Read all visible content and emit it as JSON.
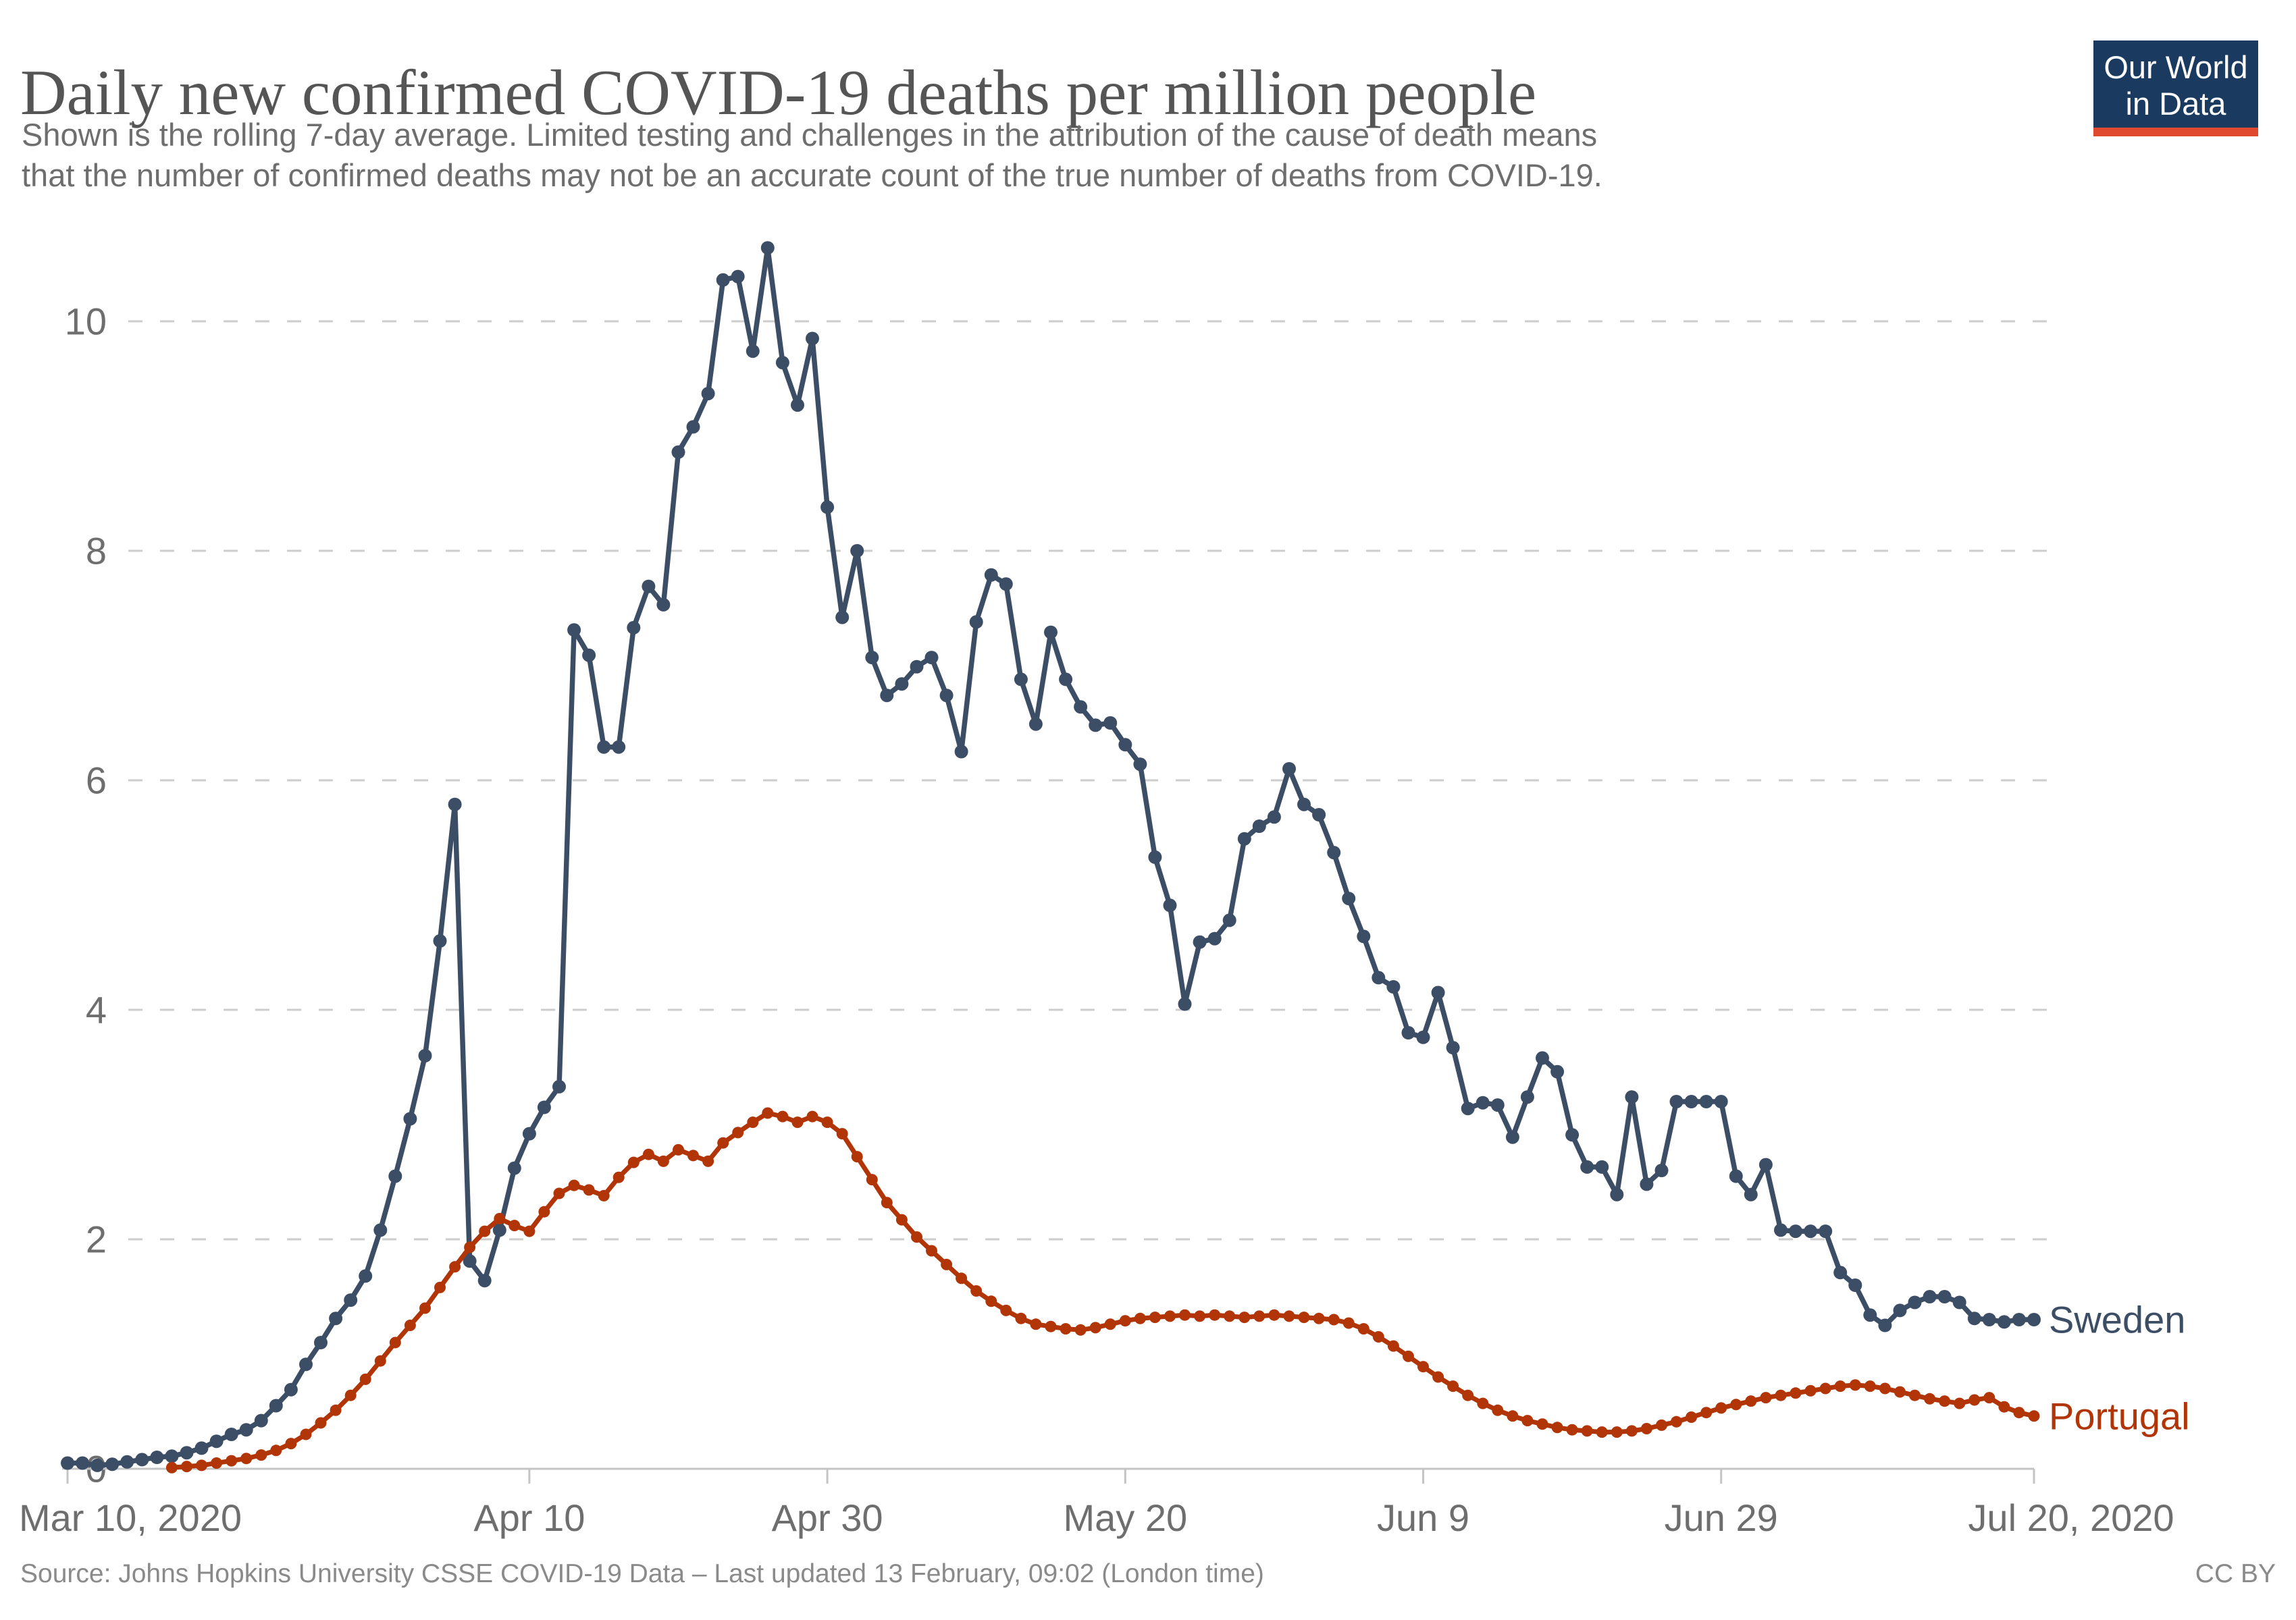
{
  "header": {
    "title": "Daily new confirmed COVID-19 deaths per million people",
    "subtitle_lines": [
      "Shown is the rolling 7-day average. Limited testing and challenges in the attribution of the cause of death means",
      "that the number of confirmed deaths may not be an accurate count of the true number of deaths from COVID-19."
    ]
  },
  "logo": {
    "line1": "Our World",
    "line2": "in Data",
    "bg_color": "#1B3A5F",
    "bar_color": "#E0492D"
  },
  "footer": {
    "source": "Source: Johns Hopkins University CSSE COVID-19 Data – Last updated 13 February, 09:02 (London time)",
    "license": "CC BY"
  },
  "chart_data": {
    "type": "line",
    "title": "Daily new confirmed COVID-19 deaths per million people",
    "x_start": "2020-03-10",
    "x_end": "2020-07-20",
    "cadence": "daily",
    "x_ticks": [
      {
        "label": "Mar 10, 2020",
        "day": 0
      },
      {
        "label": "Apr 10",
        "day": 31
      },
      {
        "label": "Apr 30",
        "day": 51
      },
      {
        "label": "May 20",
        "day": 71
      },
      {
        "label": "Jun 9",
        "day": 91
      },
      {
        "label": "Jun 29",
        "day": 111
      },
      {
        "label": "Jul 20, 2020",
        "day": 132
      }
    ],
    "y_ticks": [
      0,
      2,
      4,
      6,
      8,
      10
    ],
    "ylim": [
      0,
      10.7
    ],
    "grid": "dashed-horizontal",
    "legend_position": "right-end-labels",
    "markers": "circle",
    "series": [
      {
        "name": "Sweden",
        "color": "#3C4E66",
        "values": [
          0.05,
          0.05,
          0.03,
          0.04,
          0.06,
          0.08,
          0.1,
          0.11,
          0.14,
          0.18,
          0.24,
          0.3,
          0.34,
          0.42,
          0.55,
          0.69,
          0.91,
          1.1,
          1.31,
          1.47,
          1.68,
          2.08,
          2.55,
          3.05,
          3.6,
          4.6,
          5.79,
          1.81,
          1.64,
          2.08,
          2.62,
          2.92,
          3.15,
          3.33,
          7.31,
          7.09,
          6.29,
          6.29,
          7.33,
          7.69,
          7.53,
          8.86,
          9.08,
          9.37,
          10.36,
          10.39,
          9.74,
          10.64,
          9.64,
          9.27,
          9.85,
          8.38,
          7.42,
          8.0,
          7.07,
          6.74,
          6.84,
          6.99,
          7.07,
          6.74,
          6.25,
          7.38,
          7.79,
          7.71,
          6.88,
          6.49,
          7.29,
          6.88,
          6.64,
          6.48,
          6.5,
          6.31,
          6.14,
          5.33,
          4.91,
          4.05,
          4.59,
          4.62,
          4.78,
          5.49,
          5.6,
          5.68,
          6.1,
          5.79,
          5.7,
          5.37,
          4.97,
          4.64,
          4.28,
          4.2,
          3.8,
          3.76,
          4.15,
          3.67,
          3.14,
          3.19,
          3.17,
          2.89,
          3.24,
          3.58,
          3.46,
          2.91,
          2.63,
          2.63,
          2.39,
          3.24,
          2.48,
          2.6,
          3.2,
          3.2,
          3.2,
          3.2,
          2.55,
          2.39,
          2.65,
          2.08,
          2.07,
          2.07,
          2.07,
          1.71,
          1.6,
          1.34,
          1.25,
          1.38,
          1.45,
          1.5,
          1.5,
          1.45,
          1.31,
          1.3,
          1.28,
          1.3,
          1.3
        ]
      },
      {
        "name": "Portugal",
        "color": "#B13507",
        "values": [
          null,
          null,
          null,
          null,
          null,
          null,
          null,
          0.01,
          0.02,
          0.03,
          0.05,
          0.07,
          0.09,
          0.12,
          0.16,
          0.22,
          0.3,
          0.4,
          0.51,
          0.64,
          0.78,
          0.94,
          1.1,
          1.25,
          1.4,
          1.58,
          1.76,
          1.93,
          2.07,
          2.18,
          2.12,
          2.07,
          2.24,
          2.4,
          2.47,
          2.43,
          2.38,
          2.54,
          2.67,
          2.74,
          2.68,
          2.78,
          2.73,
          2.68,
          2.84,
          2.93,
          3.02,
          3.1,
          3.07,
          3.02,
          3.07,
          3.02,
          2.92,
          2.72,
          2.52,
          2.32,
          2.17,
          2.02,
          1.9,
          1.78,
          1.66,
          1.55,
          1.46,
          1.38,
          1.31,
          1.26,
          1.24,
          1.22,
          1.21,
          1.23,
          1.26,
          1.29,
          1.31,
          1.32,
          1.33,
          1.34,
          1.33,
          1.34,
          1.33,
          1.32,
          1.33,
          1.34,
          1.33,
          1.32,
          1.31,
          1.3,
          1.27,
          1.22,
          1.15,
          1.07,
          0.98,
          0.89,
          0.8,
          0.72,
          0.64,
          0.57,
          0.51,
          0.46,
          0.42,
          0.39,
          0.36,
          0.34,
          0.33,
          0.32,
          0.32,
          0.33,
          0.35,
          0.38,
          0.41,
          0.45,
          0.49,
          0.53,
          0.56,
          0.59,
          0.62,
          0.64,
          0.66,
          0.68,
          0.7,
          0.72,
          0.73,
          0.72,
          0.7,
          0.67,
          0.64,
          0.61,
          0.59,
          0.57,
          0.6,
          0.62,
          0.54,
          0.49,
          0.46
        ]
      }
    ]
  },
  "style": {
    "grid_color": "#cdcdcd",
    "axis_color": "#c4c4c4",
    "tick_label_color": "#6e6e6e"
  }
}
